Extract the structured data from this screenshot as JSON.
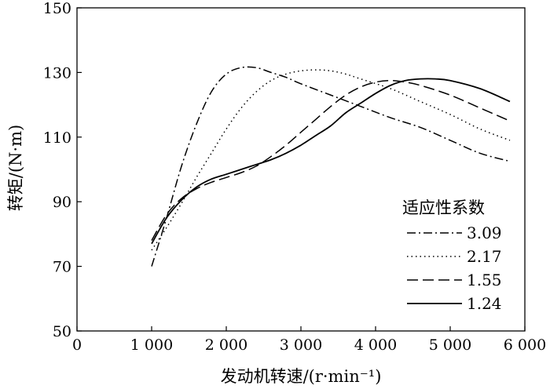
{
  "chart_data": {
    "type": "line",
    "xlabel": "发动机转速/(r·min⁻¹)",
    "ylabel": "转矩/(N·m)",
    "xlim": [
      0,
      6000
    ],
    "ylim": [
      50,
      150
    ],
    "x_ticks": [
      0,
      1000,
      2000,
      3000,
      4000,
      5000,
      6000
    ],
    "x_tick_labels": [
      "0",
      "1 000",
      "2 000",
      "3 000",
      "4 000",
      "5 000",
      "6 000"
    ],
    "y_ticks": [
      50,
      70,
      90,
      110,
      130,
      150
    ],
    "y_tick_labels": [
      "50",
      "70",
      "90",
      "110",
      "130",
      "150"
    ],
    "grid": false,
    "legend": {
      "title": "适应性系数",
      "placement": "lower-right"
    },
    "series": [
      {
        "name": "3.09",
        "dash": "dashdot",
        "x": [
          1000,
          1200,
          1400,
          1600,
          1800,
          2000,
          2200,
          2400,
          2600,
          2800,
          3000,
          3400,
          3800,
          4200,
          4600,
          5000,
          5400,
          5800
        ],
        "y": [
          70.0,
          85.0,
          101.0,
          114.0,
          124.0,
          129.5,
          131.5,
          131.5,
          130.0,
          128.5,
          126.5,
          123.0,
          119.5,
          116.0,
          113.0,
          109.0,
          105.0,
          102.5
        ]
      },
      {
        "name": "2.17",
        "dash": "dotted",
        "x": [
          1000,
          1200,
          1400,
          1600,
          1800,
          2000,
          2200,
          2400,
          2600,
          2800,
          3000,
          3200,
          3400,
          3600,
          3800,
          4200,
          4600,
          5000,
          5400,
          5800
        ],
        "y": [
          75.0,
          82.0,
          89.5,
          97.5,
          105.0,
          112.5,
          119.0,
          124.0,
          127.5,
          129.5,
          130.5,
          130.8,
          130.5,
          129.5,
          128.0,
          125.0,
          121.0,
          117.0,
          112.5,
          109.0
        ]
      },
      {
        "name": "1.55",
        "dash": "dashed",
        "x": [
          1000,
          1200,
          1400,
          1600,
          1800,
          2000,
          2200,
          2400,
          2600,
          2800,
          3000,
          3200,
          3400,
          3600,
          3800,
          4000,
          4200,
          4400,
          4600,
          5000,
          5400,
          5800
        ],
        "y": [
          78.0,
          86.0,
          91.0,
          94.0,
          96.0,
          97.5,
          99.0,
          101.0,
          104.0,
          107.5,
          111.5,
          115.5,
          119.5,
          123.0,
          125.5,
          127.0,
          127.5,
          127.0,
          126.0,
          123.0,
          119.0,
          115.0
        ]
      },
      {
        "name": "1.24",
        "dash": "solid",
        "x": [
          1000,
          1200,
          1400,
          1600,
          1800,
          2000,
          2200,
          2400,
          2600,
          2800,
          3000,
          3200,
          3400,
          3600,
          3800,
          4000,
          4200,
          4400,
          4600,
          4800,
          5000,
          5400,
          5800
        ],
        "y": [
          77.0,
          85.0,
          90.5,
          94.5,
          97.0,
          98.5,
          100.0,
          101.5,
          103.0,
          105.0,
          107.5,
          110.5,
          113.5,
          117.5,
          120.5,
          123.5,
          126.0,
          127.5,
          128.0,
          128.0,
          127.5,
          125.0,
          121.0
        ]
      }
    ]
  },
  "colors": {
    "axis": "#000000",
    "lines": "#000000",
    "background": "#ffffff"
  }
}
